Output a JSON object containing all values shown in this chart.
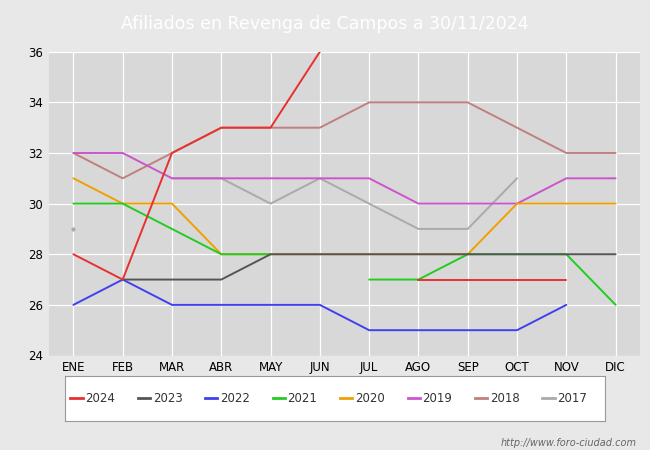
{
  "title": "Afiliados en Revenga de Campos a 30/11/2024",
  "months": [
    "ENE",
    "FEB",
    "MAR",
    "ABR",
    "MAY",
    "JUN",
    "JUL",
    "AGO",
    "SEP",
    "OCT",
    "NOV",
    "DIC"
  ],
  "series_data": {
    "2024": [
      28,
      27,
      32,
      33,
      33,
      36,
      null,
      27,
      27,
      27,
      27,
      null
    ],
    "2023": [
      null,
      27,
      27,
      27,
      28,
      28,
      28,
      28,
      28,
      28,
      28,
      28
    ],
    "2022": [
      26,
      27,
      26,
      26,
      26,
      26,
      25,
      25,
      25,
      25,
      26,
      null
    ],
    "2021": [
      30,
      30,
      29,
      28,
      28,
      null,
      27,
      27,
      28,
      28,
      28,
      26
    ],
    "2020": [
      31,
      30,
      30,
      28,
      28,
      28,
      28,
      28,
      28,
      30,
      30,
      30
    ],
    "2019": [
      32,
      32,
      31,
      31,
      31,
      31,
      31,
      30,
      30,
      30,
      31,
      31
    ],
    "2018": [
      32,
      31,
      32,
      33,
      33,
      33,
      34,
      34,
      34,
      33,
      32,
      32
    ],
    "2017": [
      29,
      null,
      31,
      31,
      30,
      31,
      30,
      29,
      29,
      31,
      null,
      null
    ]
  },
  "colors": {
    "2024": "#e83030",
    "2023": "#555555",
    "2022": "#4040ee",
    "2021": "#22cc22",
    "2020": "#f0a000",
    "2019": "#cc55cc",
    "2018": "#c08080",
    "2017": "#aaaaaa"
  },
  "legend_years": [
    "2024",
    "2023",
    "2022",
    "2021",
    "2020",
    "2019",
    "2018",
    "2017"
  ],
  "ylim": [
    24,
    36
  ],
  "yticks": [
    24,
    26,
    28,
    30,
    32,
    34,
    36
  ],
  "header_bg": "#5577cc",
  "header_text_color": "#ffffff",
  "plot_bg": "#e8e8e8",
  "chart_bg": "#d8d8d8",
  "grid_color": "#ffffff",
  "footer_text": "http://www.foro-ciudad.com",
  "footer_color": "#666666"
}
